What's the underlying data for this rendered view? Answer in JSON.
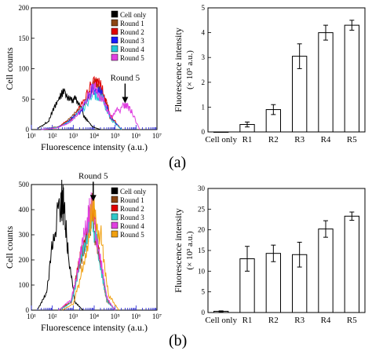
{
  "panel_labels": [
    "(a)",
    "(b)"
  ],
  "legend_labels": [
    "Cell only",
    "Round 1",
    "Round 2",
    "Round 3",
    "Round 4",
    "Round 5"
  ],
  "colors": {
    "Cell only": "#000000",
    "Round 1": "#8b4513",
    "Round 2": "#e00000",
    "Round 3": "#1a1aff",
    "Round 4": "#22c8d8",
    "Round 5 (a)": "#e040e0",
    "Round 4 (b)": "#e040e0",
    "Round 5 (b)": "#f0a010",
    "Round 3 (b)": "#30c8c8",
    "axis": "#1a1ad0"
  },
  "chart_data": [
    {
      "type": "line",
      "panel": "(a)",
      "xlabel": "Fluorescence intensity (a.u.)",
      "ylabel": "Cell counts",
      "x_scale": "log",
      "xlim": [
        10,
        10000000
      ],
      "ylim": [
        0,
        200
      ],
      "x_ticks": [
        "10¹",
        "10²",
        "10³",
        "10⁴",
        "10⁵",
        "10⁶",
        "10⁷"
      ],
      "y_ticks": [
        "0",
        "50",
        "100",
        "150",
        "200"
      ],
      "annotation": "Round 5",
      "annotation_x": 300000,
      "series": [
        {
          "name": "Cell only",
          "x": [
            20,
            60,
            150,
            400,
            800,
            1500,
            3000,
            8000,
            20000
          ],
          "y": [
            2,
            12,
            40,
            62,
            55,
            45,
            25,
            5,
            0
          ]
        },
        {
          "name": "Round 1",
          "x": [
            30,
            200,
            800,
            3000,
            10000,
            25000,
            60000,
            200000
          ],
          "y": [
            0,
            5,
            18,
            40,
            74,
            60,
            20,
            0
          ]
        },
        {
          "name": "Round 2",
          "x": [
            30,
            200,
            800,
            3000,
            10000,
            25000,
            60000,
            200000
          ],
          "y": [
            0,
            4,
            18,
            42,
            82,
            65,
            22,
            0
          ]
        },
        {
          "name": "Round 3",
          "x": [
            30,
            200,
            800,
            3000,
            10000,
            25000,
            60000,
            200000
          ],
          "y": [
            0,
            4,
            16,
            38,
            70,
            55,
            20,
            0
          ]
        },
        {
          "name": "Round 4",
          "x": [
            30,
            200,
            800,
            3000,
            10000,
            25000,
            60000,
            200000
          ],
          "y": [
            0,
            4,
            14,
            35,
            60,
            50,
            18,
            0
          ]
        },
        {
          "name": "Round 5",
          "x": [
            30,
            200,
            800,
            3000,
            10000,
            25000,
            60000,
            120000,
            250000,
            400000,
            700000,
            1500000
          ],
          "y": [
            0,
            3,
            14,
            40,
            72,
            50,
            22,
            30,
            38,
            40,
            25,
            0
          ]
        }
      ]
    },
    {
      "type": "bar",
      "panel": "(a)",
      "categories": [
        "Cell only",
        "R1",
        "R2",
        "R3",
        "R4",
        "R5"
      ],
      "values": [
        0.0,
        0.3,
        0.9,
        3.05,
        4.0,
        4.3
      ],
      "errors": [
        0.0,
        0.1,
        0.2,
        0.5,
        0.3,
        0.2
      ],
      "ylabel": "Fluorescence intensity (× 10⁵ a.u.)",
      "ylim": [
        0,
        5
      ],
      "y_ticks": [
        "0",
        "1",
        "2",
        "3",
        "4",
        "5"
      ]
    },
    {
      "type": "line",
      "panel": "(b)",
      "xlabel": "Fluorescence intensity (a.u.)",
      "ylabel": "Cell counts",
      "x_scale": "log",
      "xlim": [
        10,
        10000000
      ],
      "ylim": [
        0,
        500
      ],
      "x_ticks": [
        "10¹",
        "10²",
        "10³",
        "10⁴",
        "10⁵",
        "10⁶",
        "10⁷"
      ],
      "y_ticks": [
        "0",
        "100",
        "200",
        "300",
        "400",
        "500"
      ],
      "annotation": "Round 5",
      "annotation_x": 9000,
      "series": [
        {
          "name": "Cell only",
          "x": [
            20,
            50,
            120,
            250,
            350,
            600,
            1200,
            3000
          ],
          "y": [
            5,
            60,
            300,
            440,
            420,
            200,
            30,
            0
          ]
        },
        {
          "name": "Round 1",
          "x": [
            200,
            800,
            2000,
            5000,
            8000,
            15000,
            40000,
            100000
          ],
          "y": [
            0,
            30,
            180,
            330,
            390,
            250,
            40,
            0
          ]
        },
        {
          "name": "Round 2",
          "x": [
            200,
            800,
            2000,
            5000,
            8000,
            15000,
            40000,
            100000
          ],
          "y": [
            0,
            35,
            190,
            340,
            400,
            260,
            45,
            0
          ]
        },
        {
          "name": "Round 3",
          "x": [
            200,
            800,
            2000,
            5000,
            8000,
            15000,
            40000,
            100000
          ],
          "y": [
            0,
            30,
            170,
            320,
            380,
            240,
            40,
            0
          ]
        },
        {
          "name": "Round 4",
          "x": [
            200,
            800,
            2000,
            5000,
            8000,
            15000,
            40000,
            100000
          ],
          "y": [
            0,
            40,
            200,
            360,
            410,
            270,
            50,
            0
          ]
        },
        {
          "name": "Round 5",
          "x": [
            300,
            1000,
            3000,
            6000,
            10000,
            20000,
            50000,
            150000
          ],
          "y": [
            0,
            25,
            170,
            340,
            420,
            300,
            60,
            0
          ]
        }
      ]
    },
    {
      "type": "bar",
      "panel": "(b)",
      "categories": [
        "Cell only",
        "R1",
        "R2",
        "R3",
        "R4",
        "R5"
      ],
      "values": [
        0.3,
        13.0,
        14.3,
        14.0,
        20.2,
        23.3
      ],
      "errors": [
        0.1,
        3.0,
        2.0,
        3.0,
        2.0,
        1.0
      ],
      "ylabel": "Fluorescence intensity (× 10³ a.u.)",
      "ylim": [
        0,
        30
      ],
      "y_ticks": [
        "0",
        "5",
        "10",
        "15",
        "20",
        "25",
        "30"
      ]
    }
  ]
}
